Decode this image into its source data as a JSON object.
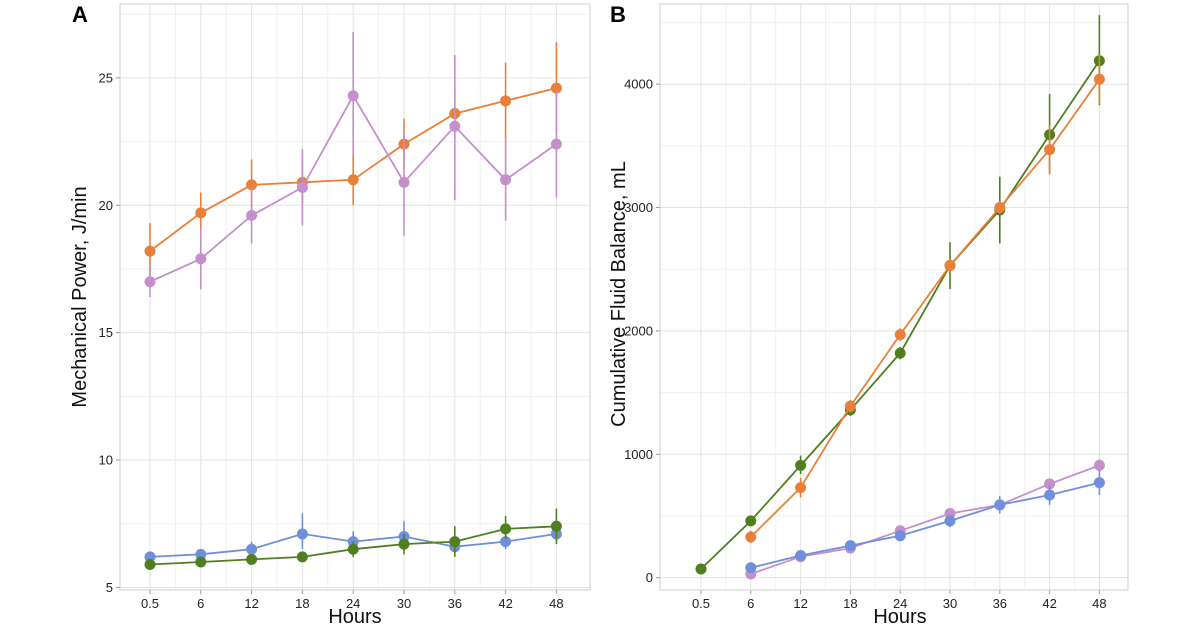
{
  "chart_data": [
    {
      "type": "line",
      "panel_label": "A",
      "xlabel": "Hours",
      "ylabel": "Mechanical Power, J/min",
      "categories": [
        "0.5",
        "6",
        "12",
        "18",
        "24",
        "30",
        "36",
        "42",
        "48"
      ],
      "yticks": [
        5,
        10,
        15,
        20,
        25
      ],
      "ylim": [
        4.9,
        27.9
      ],
      "grid": true,
      "series": [
        {
          "name": "orange",
          "color": "#E8803A",
          "values": [
            18.2,
            19.7,
            20.8,
            20.9,
            21.0,
            22.4,
            23.6,
            24.1,
            24.6
          ],
          "lower": [
            17.1,
            18.9,
            19.9,
            20.1,
            20.0,
            21.4,
            22.5,
            22.6,
            22.8
          ],
          "upper": [
            19.3,
            20.5,
            21.8,
            21.8,
            22.0,
            23.4,
            24.6,
            25.6,
            26.4
          ]
        },
        {
          "name": "purple",
          "color": "#C48FCB",
          "values": [
            17.0,
            17.9,
            19.6,
            20.7,
            24.3,
            20.9,
            23.1,
            21.0,
            22.4
          ],
          "lower": [
            16.4,
            16.7,
            18.5,
            19.2,
            21.9,
            18.8,
            20.2,
            19.4,
            20.3
          ],
          "upper": [
            17.6,
            19.1,
            20.7,
            22.2,
            26.8,
            23.0,
            25.9,
            22.6,
            24.5
          ]
        },
        {
          "name": "blue",
          "color": "#6F8FDB",
          "values": [
            6.2,
            6.3,
            6.5,
            7.1,
            6.8,
            7.0,
            6.6,
            6.8,
            7.1
          ],
          "lower": [
            6.0,
            6.1,
            6.2,
            6.5,
            6.5,
            6.6,
            6.3,
            6.5,
            6.8
          ],
          "upper": [
            6.4,
            6.5,
            6.8,
            7.9,
            7.2,
            7.6,
            6.9,
            7.1,
            7.5
          ]
        },
        {
          "name": "green",
          "color": "#4F7F1E",
          "values": [
            5.9,
            6.0,
            6.1,
            6.2,
            6.5,
            6.7,
            6.8,
            7.3,
            7.4
          ],
          "lower": [
            5.7,
            5.8,
            5.9,
            6.0,
            6.2,
            6.3,
            6.2,
            6.9,
            6.7
          ],
          "upper": [
            6.0,
            6.2,
            6.3,
            6.4,
            6.8,
            7.1,
            7.4,
            7.8,
            8.1
          ]
        }
      ]
    },
    {
      "type": "line",
      "panel_label": "B",
      "xlabel": "Hours",
      "ylabel": "Cumulative Fluid Balance, mL",
      "categories": [
        "0.5",
        "6",
        "12",
        "18",
        "24",
        "30",
        "36",
        "42",
        "48"
      ],
      "yticks": [
        0,
        1000,
        2000,
        3000,
        4000
      ],
      "ylim": [
        -100,
        4650
      ],
      "grid": true,
      "series": [
        {
          "name": "green",
          "color": "#4F7F1E",
          "values": [
            70,
            460,
            910,
            1360,
            1820,
            2530,
            2980,
            3590,
            4190
          ],
          "lower": [
            40,
            420,
            840,
            1310,
            1770,
            2340,
            2710,
            3270,
            3830
          ],
          "upper": [
            100,
            500,
            990,
            1410,
            1870,
            2720,
            3250,
            3920,
            4560
          ]
        },
        {
          "name": "orange",
          "color": "#E8803A",
          "values": [
            null,
            330,
            730,
            1390,
            1970,
            2530,
            3000,
            3470,
            4040
          ],
          "lower": [
            null,
            280,
            650,
            1340,
            1920,
            2480,
            2950,
            3270,
            3840
          ],
          "upper": [
            null,
            380,
            810,
            1440,
            2020,
            2580,
            3050,
            3670,
            4240
          ]
        },
        {
          "name": "purple",
          "color": "#C48FCB",
          "values": [
            null,
            30,
            170,
            240,
            380,
            520,
            590,
            760,
            910
          ],
          "lower": [
            null,
            0,
            140,
            210,
            350,
            490,
            560,
            720,
            860
          ],
          "upper": [
            null,
            60,
            200,
            270,
            410,
            550,
            620,
            800,
            960
          ]
        },
        {
          "name": "blue",
          "color": "#6F8FDB",
          "values": [
            null,
            80,
            180,
            260,
            340,
            460,
            590,
            670,
            770
          ],
          "lower": [
            null,
            50,
            150,
            230,
            310,
            410,
            520,
            590,
            670
          ],
          "upper": [
            null,
            110,
            210,
            290,
            370,
            510,
            660,
            750,
            870
          ]
        }
      ]
    }
  ]
}
